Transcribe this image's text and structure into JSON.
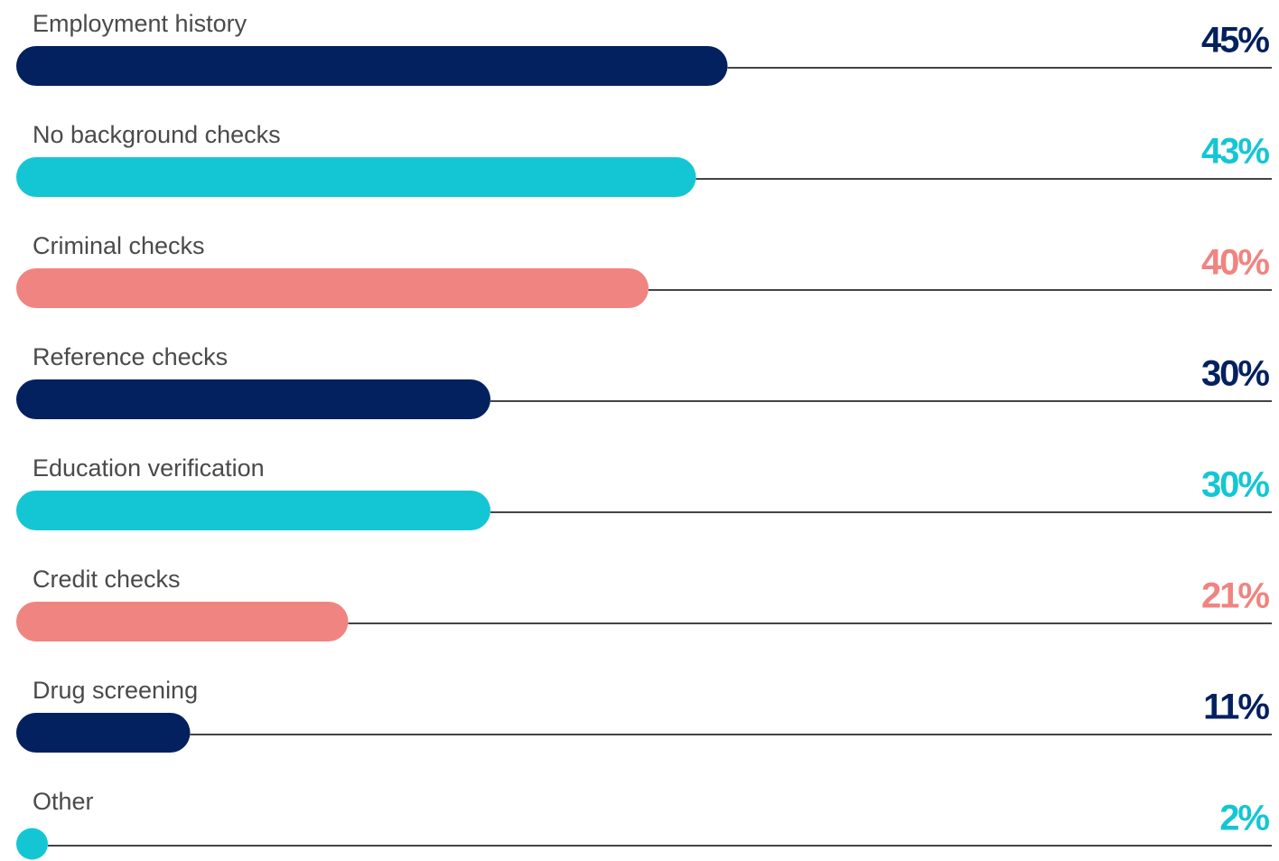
{
  "chart_data": {
    "type": "bar",
    "orientation": "horizontal",
    "categories": [
      "Employment history",
      "No background checks",
      "Criminal checks",
      "Reference checks",
      "Education verification",
      "Credit checks",
      "Drug screening",
      "Other"
    ],
    "values": [
      45,
      43,
      40,
      30,
      30,
      21,
      11,
      2
    ],
    "value_labels": [
      "45%",
      "43%",
      "40%",
      "30%",
      "30%",
      "21%",
      "11%",
      "2%"
    ],
    "colors": [
      "#03205f",
      "#14c6d4",
      "#f08480",
      "#03205f",
      "#14c6d4",
      "#f08480",
      "#03205f",
      "#14c6d4"
    ]
  }
}
